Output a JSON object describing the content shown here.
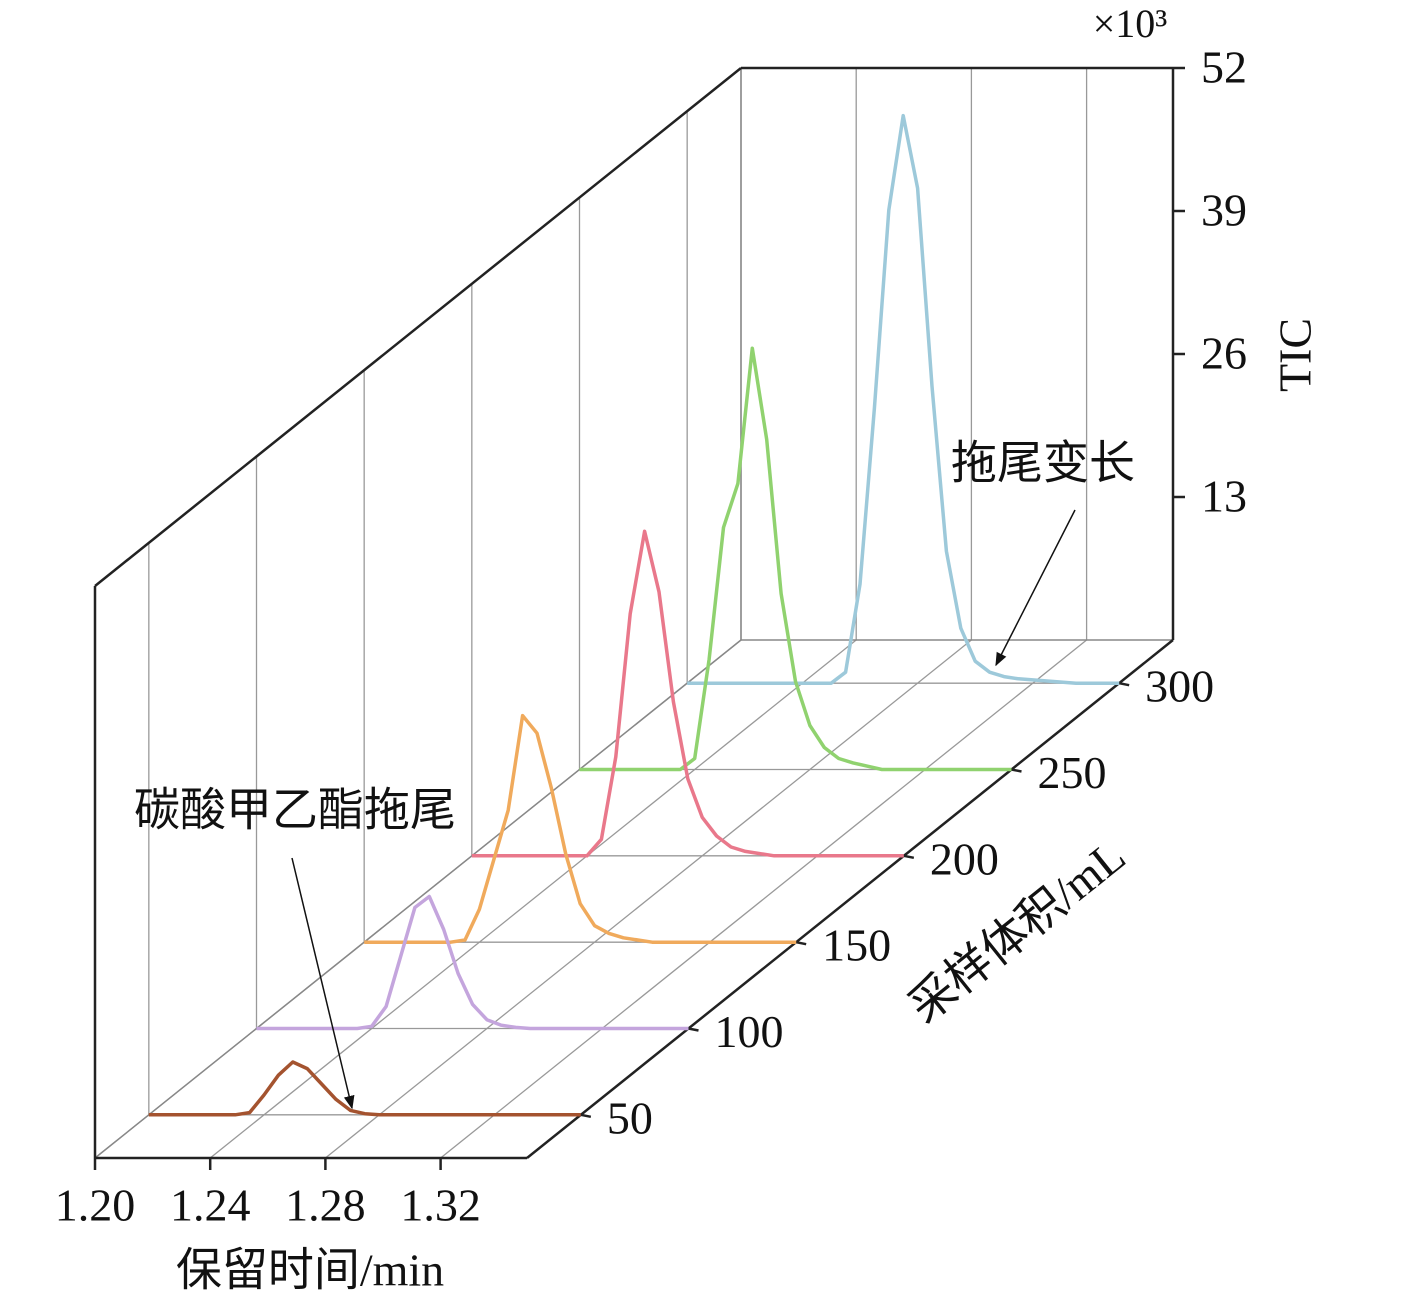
{
  "chart_data": {
    "type": "waterfall",
    "x_label": "保留时间/min",
    "z_label": "采样体积/mL",
    "y_label": "TIC",
    "y_unit": "×10³",
    "annotations": [
      "碳酸甲乙酯拖尾",
      "拖尾变长"
    ],
    "xlim": [
      1.2,
      1.35
    ],
    "xticks": [
      {
        "value": 1.2,
        "label": "1.20"
      },
      1.24,
      1.28,
      1.32
    ],
    "zlim": [
      25,
      325
    ],
    "zticks": [
      50,
      100,
      150,
      200,
      250,
      300
    ],
    "ylim": [
      0,
      52
    ],
    "yticks": [
      13,
      26,
      39,
      52
    ],
    "grid": true,
    "x": [
      1.2,
      1.205,
      1.21,
      1.215,
      1.22,
      1.225,
      1.23,
      1.235,
      1.24,
      1.245,
      1.25,
      1.255,
      1.26,
      1.265,
      1.27,
      1.275,
      1.28,
      1.285,
      1.29,
      1.295,
      1.3,
      1.305,
      1.31,
      1.315,
      1.32,
      1.325,
      1.33,
      1.335,
      1.34,
      1.345,
      1.35
    ],
    "series": [
      {
        "z": 50,
        "color": "#a4532f",
        "values": [
          0,
          0,
          0,
          0,
          0,
          0,
          0,
          0.2,
          1.8,
          3.6,
          4.8,
          4.2,
          2.8,
          1.4,
          0.4,
          0.1,
          0,
          0,
          0,
          0,
          0,
          0,
          0,
          0,
          0,
          0,
          0,
          0,
          0,
          0,
          0
        ]
      },
      {
        "z": 100,
        "color": "#c4a5dd",
        "values": [
          0,
          0,
          0,
          0,
          0,
          0,
          0,
          0,
          0.2,
          2,
          6.5,
          11,
          12,
          9,
          5,
          2.2,
          0.8,
          0.3,
          0.1,
          0,
          0,
          0,
          0,
          0,
          0,
          0,
          0,
          0,
          0,
          0,
          0
        ]
      },
      {
        "z": 150,
        "color": "#f0aa5c",
        "values": [
          0,
          0,
          0,
          0,
          0,
          0,
          0,
          0.2,
          3,
          7.5,
          12,
          20.6,
          19,
          14,
          8,
          3.5,
          1.5,
          0.8,
          0.4,
          0.2,
          0,
          0,
          0,
          0,
          0,
          0,
          0,
          0,
          0,
          0,
          0
        ]
      },
      {
        "z": 200,
        "color": "#e9788b",
        "values": [
          0,
          0,
          0,
          0,
          0,
          0,
          0,
          0,
          0,
          1.5,
          9,
          22,
          29.5,
          24,
          14,
          7,
          3.5,
          1.8,
          0.8,
          0.4,
          0.2,
          0,
          0,
          0,
          0,
          0,
          0,
          0,
          0,
          0,
          0
        ]
      },
      {
        "z": 250,
        "color": "#90d26f",
        "values": [
          0,
          0,
          0,
          0,
          0,
          0,
          0,
          0,
          1,
          10,
          22,
          26,
          38.3,
          30,
          16,
          8,
          4,
          2,
          1,
          0.6,
          0.3,
          0,
          0,
          0,
          0,
          0,
          0,
          0,
          0,
          0,
          0
        ]
      },
      {
        "z": 300,
        "color": "#9dc9da",
        "values": [
          0,
          0,
          0,
          0,
          0,
          0,
          0,
          0,
          0,
          0,
          0,
          1,
          9,
          25,
          43,
          51.6,
          45,
          27,
          12,
          5,
          2,
          1,
          0.6,
          0.4,
          0.3,
          0.2,
          0.1,
          0,
          0,
          0,
          0
        ]
      }
    ]
  }
}
